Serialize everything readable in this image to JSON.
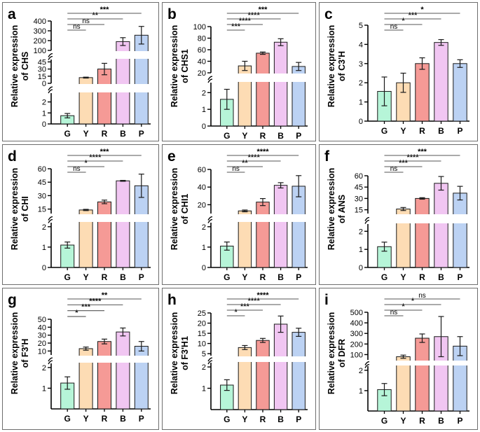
{
  "figure": {
    "description": "Relative expression of anthocyanin pathway genes across flower colour groups"
  },
  "colors": {
    "G": "#b6f5d8",
    "Y": "#fddcb4",
    "R": "#f59a96",
    "B": "#f1c6f2",
    "P": "#bcd2f3",
    "axis": "#000000",
    "panel_border": "#6e6e6e"
  },
  "chart_data": [
    {
      "panel": "a",
      "type": "bar",
      "ylabel": "Relative expression of CHS",
      "categories": [
        "G",
        "Y",
        "R",
        "B",
        "P"
      ],
      "values": [
        0.75,
        12,
        30,
        190,
        255
      ],
      "errors": [
        0.2,
        1,
        12,
        40,
        90
      ],
      "y_segments": [
        {
          "range": [
            0,
            2.8
          ],
          "ticks": [
            0,
            1,
            2
          ],
          "tick_labels": [
            "0",
            "1",
            "2"
          ]
        },
        {
          "range": [
            0,
            50
          ],
          "ticks": [
            0,
            15,
            30,
            45
          ],
          "tick_labels": [
            "0",
            "15",
            "30",
            "45"
          ]
        },
        {
          "range": [
            100,
            400
          ],
          "ticks": [
            100,
            200,
            300,
            400
          ],
          "tick_labels": [
            "100",
            "200",
            "300",
            "400"
          ]
        }
      ],
      "significance": [
        {
          "from": "G",
          "to": "Y",
          "label": "ns"
        },
        {
          "from": "G",
          "to": "R",
          "label": "ns"
        },
        {
          "from": "G",
          "to": "B",
          "label": "**"
        },
        {
          "from": "G",
          "to": "P",
          "label": "***"
        }
      ]
    },
    {
      "panel": "b",
      "type": "bar",
      "ylabel": "Relative expression of CHS1",
      "categories": [
        "G",
        "Y",
        "R",
        "B",
        "P"
      ],
      "values": [
        1.6,
        32,
        54,
        73,
        31
      ],
      "errors": [
        0.6,
        8,
        2,
        6,
        7
      ],
      "y_segments": [
        {
          "range": [
            0,
            2.6
          ],
          "ticks": [
            0,
            1,
            2
          ],
          "tick_labels": [
            "0",
            "1",
            "2"
          ]
        },
        {
          "range": [
            20,
            100
          ],
          "ticks": [
            20,
            40,
            60,
            80,
            100
          ],
          "tick_labels": [
            "20",
            "40",
            "60",
            "80",
            "100"
          ]
        }
      ],
      "significance": [
        {
          "from": "G",
          "to": "Y",
          "label": "***"
        },
        {
          "from": "G",
          "to": "R",
          "label": "****"
        },
        {
          "from": "G",
          "to": "B",
          "label": "****"
        },
        {
          "from": "G",
          "to": "P",
          "label": "***"
        }
      ]
    },
    {
      "panel": "c",
      "type": "bar",
      "ylabel": "Relative expression of C3'H",
      "categories": [
        "G",
        "Y",
        "R",
        "B",
        "P"
      ],
      "values": [
        1.55,
        2.0,
        3.0,
        4.1,
        3.0
      ],
      "errors": [
        0.75,
        0.5,
        0.3,
        0.15,
        0.2
      ],
      "y_segments": [
        {
          "range": [
            0,
            5
          ],
          "ticks": [
            0,
            1,
            2,
            3,
            4,
            5
          ],
          "tick_labels": [
            "0",
            "1",
            "2",
            "3",
            "4",
            "5"
          ]
        }
      ],
      "significance": [
        {
          "from": "G",
          "to": "Y",
          "label": "ns"
        },
        {
          "from": "G",
          "to": "R",
          "label": "*"
        },
        {
          "from": "G",
          "to": "B",
          "label": "***"
        },
        {
          "from": "G",
          "to": "P",
          "label": "*"
        }
      ]
    },
    {
      "panel": "d",
      "type": "bar",
      "ylabel": "Relative expression of CHI",
      "categories": [
        "G",
        "Y",
        "R",
        "B",
        "P"
      ],
      "values": [
        1.1,
        14,
        23,
        46.5,
        41
      ],
      "errors": [
        0.15,
        0.7,
        2,
        0.5,
        13
      ],
      "y_segments": [
        {
          "range": [
            0,
            2.2
          ],
          "ticks": [
            0,
            1,
            2
          ],
          "tick_labels": [
            "0",
            "1",
            "2"
          ]
        },
        {
          "range": [
            10,
            60
          ],
          "ticks": [
            15,
            30,
            45,
            60
          ],
          "tick_labels": [
            "15",
            "30",
            "45",
            "60"
          ]
        }
      ],
      "significance": [
        {
          "from": "G",
          "to": "Y",
          "label": "ns"
        },
        {
          "from": "G",
          "to": "R",
          "label": "*"
        },
        {
          "from": "G",
          "to": "B",
          "label": "****"
        },
        {
          "from": "G",
          "to": "P",
          "label": "***"
        }
      ]
    },
    {
      "panel": "e",
      "type": "bar",
      "ylabel": "Relative expression of CHI1",
      "categories": [
        "G",
        "Y",
        "R",
        "B",
        "P"
      ],
      "values": [
        1.05,
        13,
        23,
        42,
        41
      ],
      "errors": [
        0.2,
        1,
        4,
        3,
        12
      ],
      "y_segments": [
        {
          "range": [
            0,
            2.2
          ],
          "ticks": [
            0,
            1,
            2
          ],
          "tick_labels": [
            "0",
            "1",
            "2"
          ]
        },
        {
          "range": [
            10,
            60
          ],
          "ticks": [
            20,
            40,
            60
          ],
          "tick_labels": [
            "20",
            "40",
            "60"
          ]
        }
      ],
      "significance": [
        {
          "from": "G",
          "to": "Y",
          "label": "ns"
        },
        {
          "from": "G",
          "to": "R",
          "label": "**"
        },
        {
          "from": "G",
          "to": "B",
          "label": "****"
        },
        {
          "from": "G",
          "to": "P",
          "label": "****"
        }
      ]
    },
    {
      "panel": "f",
      "type": "bar",
      "ylabel": "Relative expression of ANS",
      "categories": [
        "G",
        "Y",
        "R",
        "B",
        "P"
      ],
      "values": [
        1.15,
        16,
        30,
        50,
        37
      ],
      "errors": [
        0.25,
        2,
        1,
        9,
        9
      ],
      "y_segments": [
        {
          "range": [
            0,
            2.4
          ],
          "ticks": [
            0,
            1,
            2
          ],
          "tick_labels": [
            "0",
            "1",
            "2"
          ]
        },
        {
          "range": [
            10,
            60
          ],
          "ticks": [
            15,
            30,
            45,
            60
          ],
          "tick_labels": [
            "15",
            "30",
            "45",
            "60"
          ]
        }
      ],
      "significance": [
        {
          "from": "G",
          "to": "Y",
          "label": "ns"
        },
        {
          "from": "G",
          "to": "R",
          "label": "***"
        },
        {
          "from": "G",
          "to": "B",
          "label": "****"
        },
        {
          "from": "G",
          "to": "P",
          "label": "***"
        }
      ]
    },
    {
      "panel": "g",
      "type": "bar",
      "ylabel": "Relative expression of F3'H",
      "categories": [
        "G",
        "Y",
        "R",
        "B",
        "P"
      ],
      "values": [
        1.25,
        13,
        22,
        34,
        16
      ],
      "errors": [
        0.3,
        2,
        3,
        5,
        6
      ],
      "y_segments": [
        {
          "range": [
            0,
            2.2
          ],
          "ticks": [
            1,
            2
          ],
          "tick_labels": [
            "1",
            "2"
          ]
        },
        {
          "range": [
            5,
            50
          ],
          "ticks": [
            10,
            20,
            30,
            40,
            50
          ],
          "tick_labels": [
            "10",
            "20",
            "30",
            "40",
            "50"
          ]
        }
      ],
      "significance": [
        {
          "from": "G",
          "to": "Y",
          "label": "*"
        },
        {
          "from": "G",
          "to": "R",
          "label": "***"
        },
        {
          "from": "G",
          "to": "B",
          "label": "****"
        },
        {
          "from": "G",
          "to": "P",
          "label": "**"
        }
      ]
    },
    {
      "panel": "h",
      "type": "bar",
      "ylabel": "Relative expression of F3'H1",
      "categories": [
        "G",
        "Y",
        "R",
        "B",
        "P"
      ],
      "values": [
        1.15,
        8,
        11.5,
        19.5,
        15.5
      ],
      "errors": [
        0.25,
        1,
        1,
        4,
        2
      ],
      "y_segments": [
        {
          "range": [
            0,
            2.2
          ],
          "ticks": [
            1,
            2
          ],
          "tick_labels": [
            "1",
            "2"
          ]
        },
        {
          "range": [
            4,
            25
          ],
          "ticks": [
            5,
            10,
            15,
            20,
            25
          ],
          "tick_labels": [
            "5",
            "10",
            "15",
            "20",
            "25"
          ]
        }
      ],
      "significance": [
        {
          "from": "G",
          "to": "Y",
          "label": "*"
        },
        {
          "from": "G",
          "to": "R",
          "label": "***"
        },
        {
          "from": "G",
          "to": "B",
          "label": "****"
        },
        {
          "from": "G",
          "to": "P",
          "label": "****"
        }
      ]
    },
    {
      "panel": "i",
      "type": "bar",
      "ylabel": "Relative expression of DFR",
      "categories": [
        "G",
        "Y",
        "R",
        "B",
        "P"
      ],
      "values": [
        1.05,
        80,
        255,
        270,
        180
      ],
      "errors": [
        0.3,
        15,
        40,
        190,
        90
      ],
      "y_segments": [
        {
          "range": [
            0,
            2.2
          ],
          "ticks": [
            1,
            2
          ],
          "tick_labels": [
            "1",
            "2"
          ]
        },
        {
          "range": [
            50,
            500
          ],
          "ticks": [
            100,
            200,
            300,
            400,
            500
          ],
          "tick_labels": [
            "100",
            "200",
            "300",
            "400",
            "500"
          ]
        }
      ],
      "significance": [
        {
          "from": "G",
          "to": "Y",
          "label": "ns"
        },
        {
          "from": "G",
          "to": "R",
          "label": "*"
        },
        {
          "from": "G",
          "to": "B",
          "label": "*"
        },
        {
          "from": "G",
          "to": "P",
          "label": "ns"
        }
      ]
    }
  ]
}
